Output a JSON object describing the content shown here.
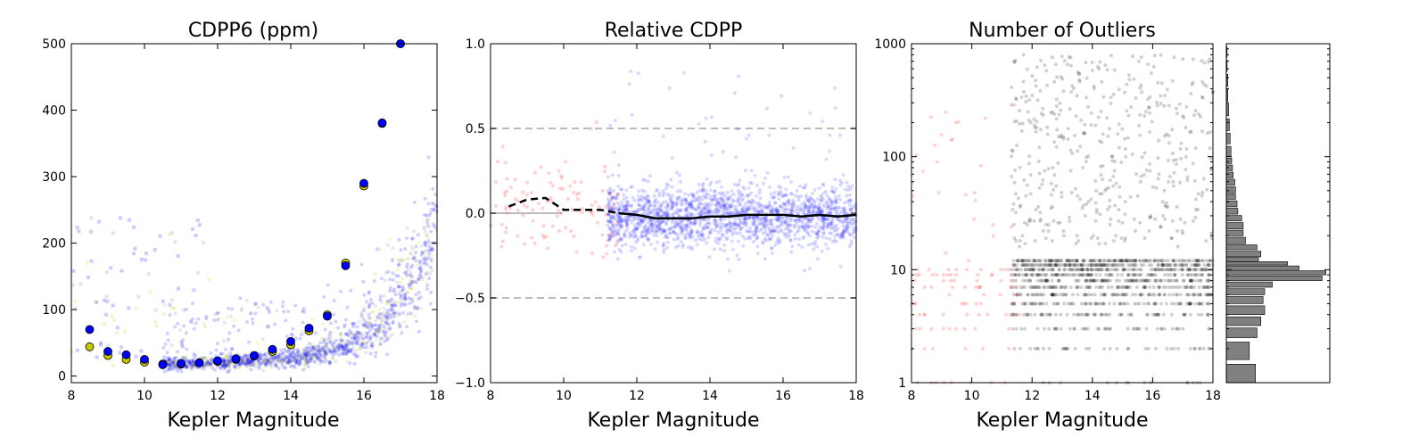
{
  "colors": {
    "blue": "#0000ff",
    "yellow": "#c8c800",
    "red": "#ff6666",
    "gray": "#808080",
    "black": "#000000"
  },
  "chart_data": [
    {
      "type": "scatter",
      "title": "CDPP6 (ppm)",
      "xlabel": "Kepler Magnitude",
      "ylabel": "",
      "xlim": [
        8,
        18
      ],
      "ylim": [
        -10,
        500
      ],
      "xticks": [
        8,
        10,
        12,
        14,
        16,
        18
      ],
      "yticks": [
        0,
        100,
        200,
        300,
        400,
        500
      ],
      "grid": false,
      "series": [
        {
          "marker": "circle",
          "color": "yellow",
          "x": [
            8.5,
            9,
            9.5,
            10,
            10.5,
            11,
            11.5,
            12,
            12.5,
            13,
            13.5,
            14,
            14.5,
            15,
            15.5,
            16,
            16.5,
            17
          ],
          "values": [
            44,
            31,
            25,
            21,
            18,
            18,
            20,
            22,
            25,
            30,
            37,
            47,
            68,
            92,
            170,
            286,
            380,
            500
          ]
        },
        {
          "marker": "circle",
          "color": "blue",
          "x": [
            8.5,
            9,
            9.5,
            10,
            10.5,
            11,
            11.5,
            12,
            12.5,
            13,
            13.5,
            14,
            14.5,
            15,
            15.5,
            16,
            16.5,
            17
          ],
          "values": [
            70,
            37,
            32,
            25,
            17,
            19,
            20,
            23,
            26,
            31,
            40,
            52,
            72,
            90,
            166,
            290,
            381,
            500
          ]
        }
      ]
    },
    {
      "type": "scatter",
      "title": "Relative CDPP",
      "xlabel": "Kepler Magnitude",
      "ylabel": "",
      "xlim": [
        8,
        18
      ],
      "ylim": [
        -1.0,
        1.0
      ],
      "xticks": [
        8,
        10,
        12,
        14,
        16,
        18
      ],
      "yticks": [
        -1.0,
        -0.5,
        0.0,
        0.5,
        1.0
      ],
      "ytick_labels": [
        "−1.0",
        "−0.5",
        "0.0",
        "0.5",
        "1.0"
      ],
      "reference_lines": [
        0.5,
        -0.5
      ],
      "grid": false,
      "series": [
        {
          "style": "dashed-line",
          "color": "black",
          "x": [
            8.5,
            9,
            9.5,
            10,
            10.5,
            11,
            11.5
          ],
          "values": [
            0.04,
            0.08,
            0.09,
            0.02,
            0.02,
            0.02,
            0.0
          ]
        },
        {
          "style": "solid-line",
          "color": "black",
          "x": [
            11.5,
            12,
            12.5,
            13,
            13.5,
            14,
            14.5,
            15,
            15.5,
            16,
            16.5,
            17,
            17.5,
            18
          ],
          "values": [
            0.0,
            -0.01,
            -0.03,
            -0.03,
            -0.03,
            -0.02,
            -0.02,
            -0.01,
            -0.01,
            -0.01,
            -0.02,
            -0.01,
            -0.02,
            -0.01
          ]
        }
      ]
    },
    {
      "type": "scatter",
      "title": "Number of Outliers",
      "xlabel": "Kepler Magnitude",
      "ylabel": "",
      "xlim": [
        8,
        18
      ],
      "ylim": [
        1,
        1000
      ],
      "yscale": "log",
      "xticks": [
        8,
        10,
        12,
        14,
        16,
        18
      ],
      "yticks": [
        1,
        10,
        100,
        1000
      ],
      "grid": false
    },
    {
      "type": "bar",
      "orientation": "horizontal",
      "title": "",
      "ylim": [
        1,
        1000
      ],
      "yscale": "log",
      "bar_color": "gray",
      "bins_y": [
        1,
        1.6,
        2.5,
        3.2,
        4,
        5,
        6,
        7,
        8,
        9,
        10,
        11,
        12,
        13,
        15,
        17,
        20,
        23,
        27,
        31,
        36,
        42,
        48,
        56,
        65,
        75,
        87,
        100,
        130,
        170,
        230,
        310,
        420,
        570,
        760
      ],
      "values": [
        38,
        30,
        40,
        45,
        50,
        48,
        50,
        60,
        125,
        130,
        95,
        80,
        42,
        45,
        40,
        25,
        22,
        22,
        20,
        15,
        14,
        12,
        12,
        11,
        9,
        8,
        7,
        6,
        5,
        4,
        3,
        2,
        2,
        1,
        1
      ],
      "xlim": [
        0,
        135
      ]
    }
  ]
}
